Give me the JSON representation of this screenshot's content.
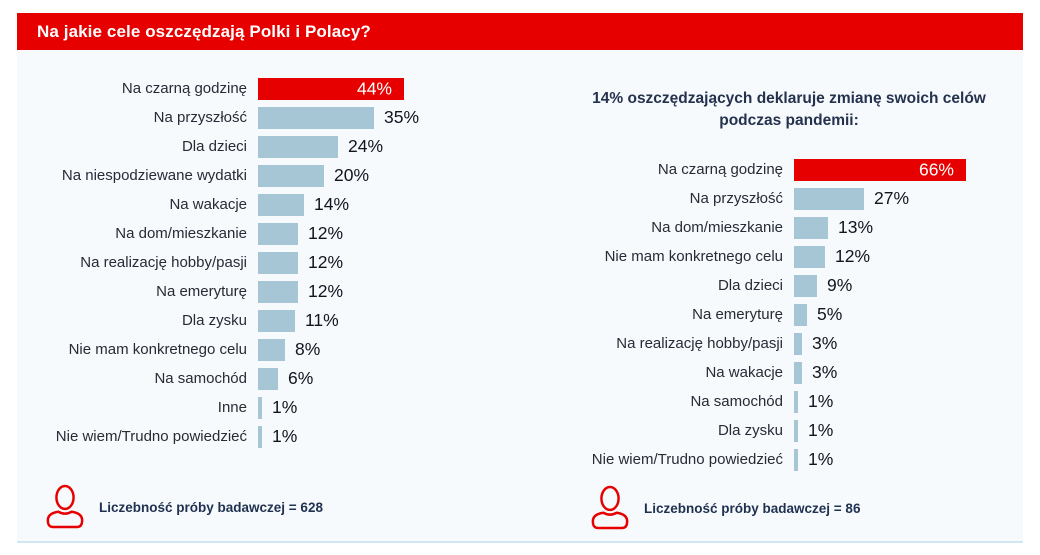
{
  "banner": {
    "title": "Na jakie cele oszczędzają Polki i Polacy?",
    "background": "#e60000",
    "text_color": "#ffffff"
  },
  "colors": {
    "accent_red": "#e60000",
    "bar_blue": "#a7c6d5",
    "panel_background": "#f7fafc",
    "bottom_line": "#d4e6f1",
    "label_text": "#262b36",
    "value_text": "#10151f",
    "navy_text": "#24324e"
  },
  "chart_data": [
    {
      "type": "bar",
      "orientation": "horizontal",
      "title": "Na jakie cele oszczędzają Polki i Polacy?",
      "categories": [
        "Na czarną godzinę",
        "Na przyszłość",
        "Dla dzieci",
        "Na niespodziewane wydatki",
        "Na wakacje",
        "Na dom/mieszkanie",
        "Na realizację hobby/pasji",
        "Na emeryturę",
        "Dla zysku",
        "Nie mam konkretnego celu",
        "Na samochód",
        "Inne",
        "Nie wiem/Trudno powiedzieć"
      ],
      "values": [
        44,
        35,
        24,
        20,
        14,
        12,
        12,
        12,
        11,
        8,
        6,
        1,
        1
      ],
      "value_suffix": "%",
      "highlight_index": 0,
      "highlight_color": "#e60000",
      "bar_color": "#a7c6d5",
      "xlim": [
        0,
        50
      ],
      "grid": false,
      "legend": false,
      "sample_note": "Liczebność próby badawczej = 628"
    },
    {
      "type": "bar",
      "orientation": "horizontal",
      "title": "14% oszczędzających deklaruje zmianę swoich celów podczas pandemii:",
      "categories": [
        "Na czarną godzinę",
        "Na przyszłość",
        "Na dom/mieszkanie",
        "Nie mam konkretnego celu",
        "Dla dzieci",
        "Na emeryturę",
        "Na realizację hobby/pasji",
        "Na wakacje",
        "Na samochód",
        "Dla zysku",
        "Nie wiem/Trudno powiedzieć"
      ],
      "values": [
        66,
        27,
        13,
        12,
        9,
        5,
        3,
        3,
        1,
        1,
        1
      ],
      "value_suffix": "%",
      "highlight_index": 0,
      "highlight_color": "#e60000",
      "bar_color": "#a7c6d5",
      "xlim": [
        0,
        75
      ],
      "grid": false,
      "legend": false,
      "sample_note": "Liczebność próby badawczej = 86"
    }
  ]
}
